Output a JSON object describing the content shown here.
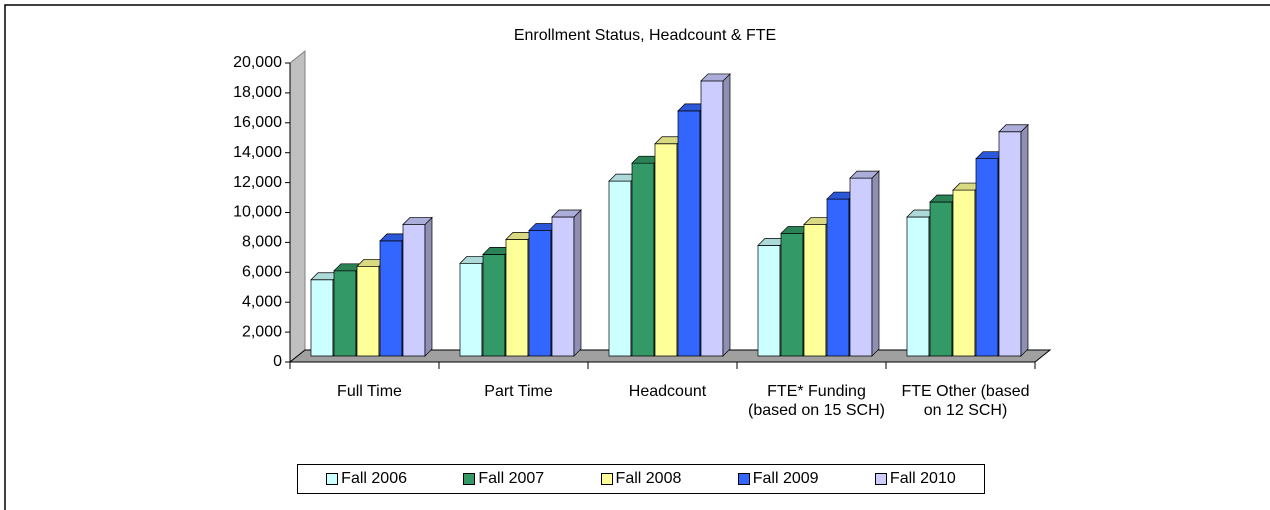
{
  "chart_data": {
    "type": "bar3d",
    "title": "Enrollment Status, Headcount & FTE",
    "categories": [
      "Full Time",
      "Part Time",
      "Headcount",
      "FTE* Funding (based on 15 SCH)",
      "FTE Other (based on 12 SCH)"
    ],
    "series": [
      {
        "name": "Fall 2006",
        "color": "#ccffff",
        "values": [
          5500,
          6600,
          12100,
          7800,
          9700
        ]
      },
      {
        "name": "Fall 2007",
        "color": "#339966",
        "values": [
          6100,
          7200,
          13300,
          8600,
          10700
        ]
      },
      {
        "name": "Fall 2008",
        "color": "#ffff99",
        "values": [
          6400,
          8200,
          14600,
          9200,
          11500
        ]
      },
      {
        "name": "Fall 2009",
        "color": "#3366ff",
        "values": [
          8100,
          8800,
          16800,
          10900,
          13600
        ]
      },
      {
        "name": "Fall 2010",
        "color": "#ccccff",
        "values": [
          9200,
          9700,
          18800,
          12300,
          15400
        ]
      }
    ],
    "ylim": [
      0,
      20000
    ],
    "yticks": [
      0,
      {
        "value": 2000,
        "label": "2,000"
      },
      {
        "value": 4000,
        "label": "4,000"
      },
      {
        "value": 6000,
        "label": "6,000"
      },
      {
        "value": 8000,
        "label": "8,000"
      },
      {
        "value": 10000,
        "label": "10,000"
      },
      {
        "value": 12000,
        "label": "12,000"
      },
      {
        "value": 14000,
        "label": "14,000"
      },
      {
        "value": 16000,
        "label": "16,000"
      },
      {
        "value": 18000,
        "label": "18,000"
      },
      {
        "value": 20000,
        "label": "20,000"
      }
    ],
    "legend": "bottom"
  }
}
